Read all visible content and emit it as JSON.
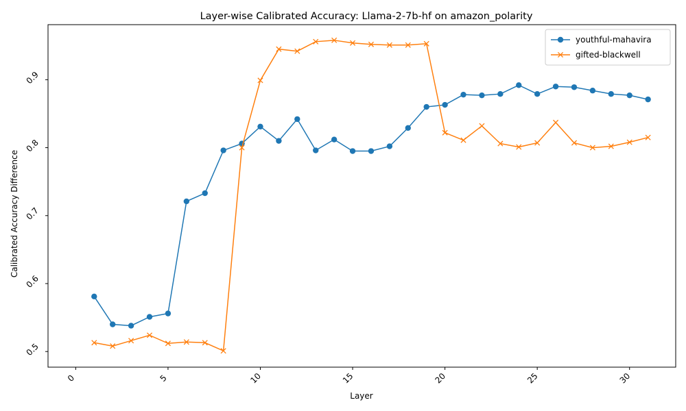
{
  "chart_data": {
    "type": "line",
    "title": "Layer-wise Calibrated Accuracy: Llama-2-7b-hf on amazon_polarity",
    "xlabel": "Layer",
    "ylabel": "Calibrated Accuracy Difference",
    "xlim": [
      -1.5,
      32.5
    ],
    "ylim": [
      0.477,
      0.981
    ],
    "xticks": [
      0,
      5,
      10,
      15,
      20,
      25,
      30
    ],
    "yticks": [
      0.5,
      0.6,
      0.7,
      0.8,
      0.9
    ],
    "xtick_labels": [
      "0",
      "5",
      "10",
      "15",
      "20",
      "25",
      "30"
    ],
    "ytick_labels": [
      "0.5",
      "0.6",
      "0.7",
      "0.8",
      "0.9"
    ],
    "grid": false,
    "legend_position": "top-right",
    "x": [
      1,
      2,
      3,
      4,
      5,
      6,
      7,
      8,
      9,
      10,
      11,
      12,
      13,
      14,
      15,
      16,
      17,
      18,
      19,
      20,
      21,
      22,
      23,
      24,
      25,
      26,
      27,
      28,
      29,
      30,
      31
    ],
    "series": [
      {
        "name": "youthful-mahavira",
        "color": "#1f77b4",
        "marker": "circle",
        "values": [
          0.581,
          0.54,
          0.538,
          0.551,
          0.556,
          0.721,
          0.733,
          0.796,
          0.806,
          0.831,
          0.81,
          0.842,
          0.796,
          0.812,
          0.795,
          0.795,
          0.802,
          0.829,
          0.86,
          0.863,
          0.878,
          0.877,
          0.879,
          0.892,
          0.879,
          0.89,
          0.889,
          0.884,
          0.879,
          0.877,
          0.871
        ]
      },
      {
        "name": "gifted-blackwell",
        "color": "#ff7f0e",
        "marker": "x",
        "values": [
          0.513,
          0.508,
          0.516,
          0.524,
          0.512,
          0.514,
          0.513,
          0.501,
          0.8,
          0.899,
          0.945,
          0.942,
          0.956,
          0.958,
          0.954,
          0.952,
          0.951,
          0.951,
          0.953,
          0.822,
          0.811,
          0.832,
          0.806,
          0.801,
          0.807,
          0.837,
          0.807,
          0.8,
          0.802,
          0.808,
          0.815
        ]
      }
    ]
  }
}
